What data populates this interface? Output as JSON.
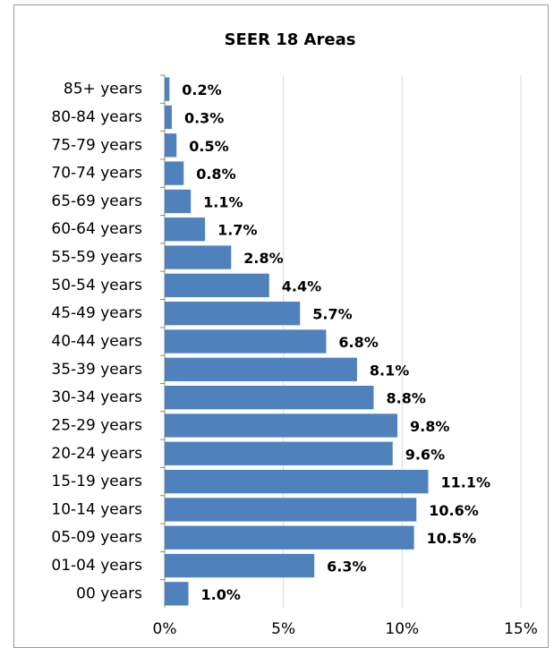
{
  "chart_data": {
    "type": "barh",
    "title": "SEER 18 Areas",
    "categories": [
      "85+ years",
      "80-84 years",
      "75-79 years",
      "70-74 years",
      "65-69 years",
      "60-64 years",
      "55-59 years",
      "50-54 years",
      "45-49 years",
      "40-44 years",
      "35-39 years",
      "30-34 years",
      "25-29 years",
      "20-24 years",
      "15-19 years",
      "10-14 years",
      "05-09 years",
      "01-04 years",
      "00 years"
    ],
    "values": [
      0.2,
      0.3,
      0.5,
      0.8,
      1.1,
      1.7,
      2.8,
      4.4,
      5.7,
      6.8,
      8.1,
      8.8,
      9.8,
      9.6,
      11.1,
      10.6,
      10.5,
      6.3,
      1.0
    ],
    "value_labels": [
      "0.2%",
      "0.3%",
      "0.5%",
      "0.8%",
      "1.1%",
      "1.7%",
      "2.8%",
      "4.4%",
      "5.7%",
      "6.8%",
      "8.1%",
      "8.8%",
      "9.8%",
      "9.6%",
      "11.1%",
      "10.6%",
      "10.5%",
      "6.3%",
      "1.0%"
    ],
    "color": "#4f81bd",
    "xlim": [
      0,
      15
    ],
    "xticks": [
      {
        "value": 0,
        "label": "0%"
      },
      {
        "value": 5,
        "label": "5%"
      },
      {
        "value": 10,
        "label": "10%"
      },
      {
        "value": 15,
        "label": "15%"
      }
    ],
    "grid": true
  }
}
